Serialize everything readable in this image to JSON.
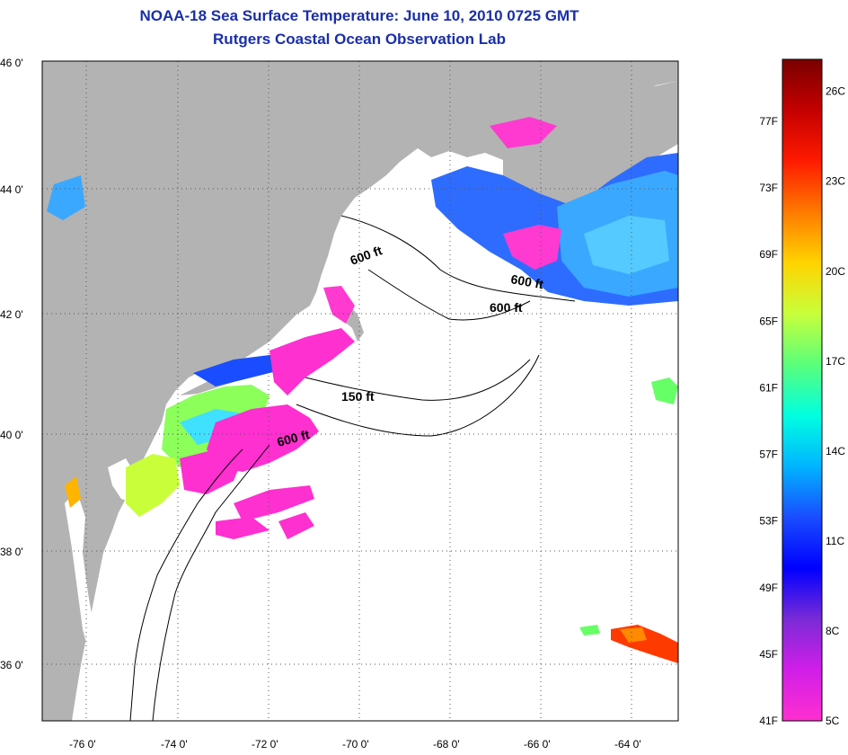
{
  "title": {
    "line1": "NOAA-18 Sea Surface Temperature:  June 10, 2010 0725 GMT",
    "line2": "Rutgers Coastal Ocean Observation Lab"
  },
  "map": {
    "lat_labels": [
      "46 0'",
      "44 0'",
      "42 0'",
      "40 0'",
      "38 0'",
      "36 0'"
    ],
    "lon_labels": [
      "-76 0'",
      "-74 0'",
      "-72 0'",
      "-70 0'",
      "-68 0'",
      "-66 0'",
      "-64 0'"
    ],
    "lat_range": [
      35,
      46.1
    ],
    "lon_range": [
      -77,
      -63
    ],
    "contour_labels": [
      "600 ft",
      "600 ft",
      "600 ft",
      "150 ft",
      "600 ft"
    ],
    "colors": {
      "land": "#b3b3b3",
      "ocean": "#ffffff",
      "coast": "#000000",
      "grid": "#555555"
    }
  },
  "legend": {
    "fahrenheit_labels": [
      "77F",
      "73F",
      "69F",
      "65F",
      "61F",
      "57F",
      "53F",
      "49F",
      "45F",
      "41F"
    ],
    "celsius_labels": [
      "26C",
      "23C",
      "20C",
      "17C",
      "14C",
      "11C",
      "8C",
      "5C"
    ],
    "colormap_stops": [
      "#7a0000",
      "#c40000",
      "#ff1a00",
      "#ff7a00",
      "#ffd400",
      "#c8ff3a",
      "#5aff7a",
      "#00ffe0",
      "#00b4ff",
      "#1a4dff",
      "#0000ff",
      "#7a2bd6",
      "#d11ee8",
      "#ff2fd0"
    ]
  }
}
